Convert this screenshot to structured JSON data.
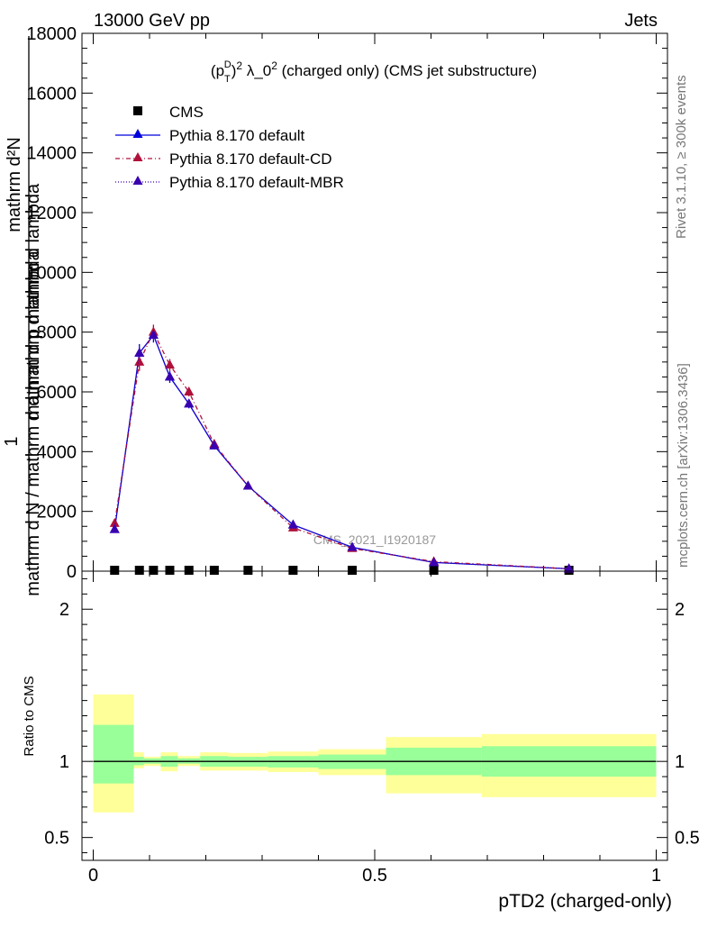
{
  "header": {
    "left": "13000 GeV pp",
    "right": "Jets"
  },
  "side_labels": {
    "rivet": "Rivet 3.1.10, ≥ 300k events",
    "mcplots": "mcplots.cern.ch [arXiv:1306.3436]"
  },
  "chart_data": [
    {
      "type": "line",
      "panel": "main",
      "title": "(pTD)2 λ_02 (charged only) (CMS jet substructure)",
      "title_parts": {
        "p": "(p",
        "sup": "D",
        "sub": "T",
        "close": ")",
        "exp": "2",
        "lambda": " λ_0",
        "lambda_exp": "2",
        "rest": " (charged only) (CMS jet substructure)"
      },
      "ylabel_numerator": "1",
      "ylabel_denominator": "mathrm d N / mathrm d d mathrm d lambda",
      "ylabel_top": "mathrm d²N",
      "ylabel_lower": "mathrm d N / mathrm d d mathrm d lambda",
      "ylabel_upper": "mathrm d p mathrm d lambda",
      "ylim": [
        0,
        18000
      ],
      "yticks": [
        0,
        2000,
        4000,
        6000,
        8000,
        10000,
        12000,
        14000,
        16000,
        18000
      ],
      "ytick_labels": [
        "0",
        "2000",
        "4000",
        "6000",
        "8000",
        "10000",
        "12000",
        "14000",
        "16000",
        "18000"
      ],
      "xlim": [
        -0.02,
        1.02
      ],
      "watermark": "CMS_2021_I1920187",
      "legend_position": "top-left",
      "x": [
        0.038,
        0.082,
        0.107,
        0.136,
        0.17,
        0.215,
        0.275,
        0.355,
        0.46,
        0.605,
        0.845
      ],
      "series": [
        {
          "name": "CMS",
          "marker": "square",
          "color": "#000000",
          "values": [
            30,
            30,
            30,
            30,
            30,
            30,
            30,
            30,
            30,
            30,
            30
          ]
        },
        {
          "name": "Pythia 8.170 default",
          "marker": "triangle",
          "color": "#0000dd",
          "dash": "solid",
          "values": [
            1400,
            7300,
            7900,
            6500,
            5600,
            4200,
            2850,
            1550,
            800,
            290,
            80
          ],
          "errors": [
            100,
            300,
            250,
            200,
            150,
            120,
            80,
            60,
            40,
            30,
            20
          ]
        },
        {
          "name": "Pythia 8.170 default-CD",
          "marker": "triangle",
          "color": "#b0103a",
          "dash": "5,3,1,3",
          "values": [
            1600,
            7000,
            8000,
            6900,
            6000,
            4250,
            2850,
            1450,
            760,
            320,
            80
          ],
          "errors": [
            100,
            300,
            250,
            200,
            150,
            120,
            80,
            60,
            40,
            30,
            20
          ]
        },
        {
          "name": "Pythia 8.170 default-MBR",
          "marker": "triangle",
          "color": "#3a00b0",
          "dash": "1,2",
          "values": [
            1400,
            7300,
            7900,
            6500,
            5600,
            4200,
            2850,
            1550,
            800,
            290,
            80
          ]
        }
      ]
    },
    {
      "type": "area",
      "panel": "ratio",
      "ylabel": "Ratio to CMS",
      "xlabel": "pTD2 (charged-only)",
      "ylim": [
        0.35,
        2.25
      ],
      "yticks": [
        0.5,
        1,
        2
      ],
      "ytick_labels": [
        "0.5",
        "1",
        "2"
      ],
      "xticks": [
        0,
        0.5,
        1
      ],
      "xtick_labels": [
        "0",
        "0.5",
        "1"
      ],
      "xlim": [
        -0.02,
        1.02
      ],
      "bands": {
        "green_color": "#99ff99",
        "yellow_color": "#ffff99",
        "bins": [
          {
            "x0": 0.0,
            "x1": 0.072,
            "g": [
              0.855,
              1.24
            ],
            "y": [
              0.665,
              1.44
            ]
          },
          {
            "x0": 0.072,
            "x1": 0.09,
            "g": [
              0.975,
              1.03
            ],
            "y": [
              0.955,
              1.06
            ]
          },
          {
            "x0": 0.09,
            "x1": 0.12,
            "g": [
              0.985,
              1.02
            ],
            "y": [
              0.97,
              1.03
            ]
          },
          {
            "x0": 0.12,
            "x1": 0.15,
            "g": [
              0.965,
              1.035
            ],
            "y": [
              0.935,
              1.06
            ]
          },
          {
            "x0": 0.15,
            "x1": 0.19,
            "g": [
              0.985,
              1.02
            ],
            "y": [
              0.97,
              1.035
            ]
          },
          {
            "x0": 0.19,
            "x1": 0.24,
            "g": [
              0.965,
              1.035
            ],
            "y": [
              0.94,
              1.06
            ]
          },
          {
            "x0": 0.24,
            "x1": 0.31,
            "g": [
              0.965,
              1.03
            ],
            "y": [
              0.94,
              1.055
            ]
          },
          {
            "x0": 0.31,
            "x1": 0.4,
            "g": [
              0.96,
              1.035
            ],
            "y": [
              0.93,
              1.065
            ]
          },
          {
            "x0": 0.4,
            "x1": 0.52,
            "g": [
              0.95,
              1.045
            ],
            "y": [
              0.91,
              1.08
            ]
          },
          {
            "x0": 0.52,
            "x1": 0.69,
            "g": [
              0.91,
              1.09
            ],
            "y": [
              0.79,
              1.16
            ]
          },
          {
            "x0": 0.69,
            "x1": 1.0,
            "g": [
              0.9,
              1.1
            ],
            "y": [
              0.765,
              1.18
            ]
          }
        ]
      }
    }
  ]
}
